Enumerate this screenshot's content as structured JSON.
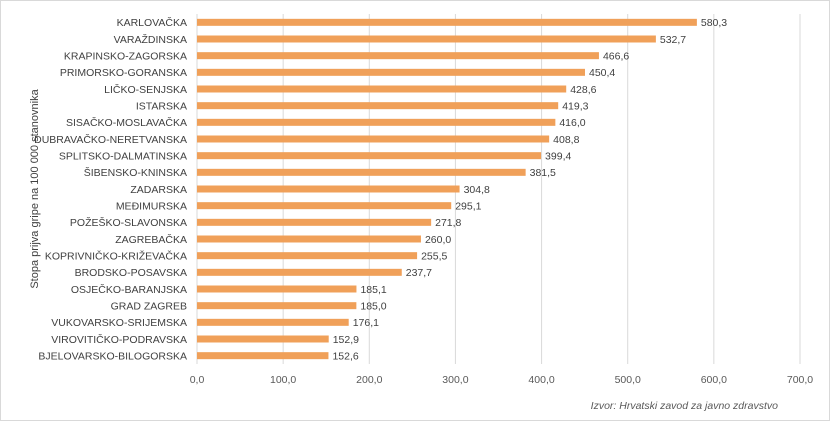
{
  "chart_data": {
    "type": "bar",
    "orientation": "horizontal",
    "categories": [
      "KARLOVAČKA",
      "VARAŽDINSKA",
      "KRAPINSKO-ZAGORSKA",
      "PRIMORSKO-GORANSKA",
      "LIČKO-SENJSKA",
      "ISTARSKA",
      "SISAČKO-MOSLAVAČKA",
      "DUBRAVAČKO-NERETVANSKA",
      "SPLITSKO-DALMATINSKA",
      "ŠIBENSKO-KNINSKA",
      "ZADARSKA",
      "MEĐIMURSKA",
      "POŽEŠKO-SLAVONSKA",
      "ZAGREBAČKA",
      "KOPRIVNIČKO-KRIŽEVAČKA",
      "BRODSKO-POSAVSKA",
      "OSJEČKO-BARANJSKA",
      "GRAD ZAGREB",
      "VUKOVARSKO-SRIJEMSKA",
      "VIROVITIČKO-PODRAVSKA",
      "BJELOVARSKO-BILOGORSKA"
    ],
    "values": [
      580.3,
      532.7,
      466.6,
      450.4,
      428.6,
      419.3,
      416.0,
      408.8,
      399.4,
      381.5,
      304.8,
      295.1,
      271.8,
      260.0,
      255.5,
      237.7,
      185.1,
      185.0,
      176.1,
      152.9,
      152.6
    ],
    "value_labels": [
      "580,3",
      "532,7",
      "466,6",
      "450,4",
      "428,6",
      "419,3",
      "416,0",
      "408,8",
      "399,4",
      "381,5",
      "304,8",
      "295,1",
      "271,8",
      "260,0",
      "255,5",
      "237,7",
      "185,1",
      "185,0",
      "176,1",
      "152,9",
      "152,6"
    ],
    "xlim": [
      0,
      700
    ],
    "x_ticks": [
      0,
      100,
      200,
      300,
      400,
      500,
      600,
      700
    ],
    "x_tick_labels": [
      "0,0",
      "100,0",
      "200,0",
      "300,0",
      "400,0",
      "500,0",
      "600,0",
      "700,0"
    ],
    "ylabel": "Stopa prijva gripe na 100 000 stanovnika",
    "xlabel": "",
    "title": "",
    "grid": "vertical",
    "bar_color": "#f0a059",
    "source": "Izvor: Hrvatski zavod za javno zdravstvo"
  }
}
